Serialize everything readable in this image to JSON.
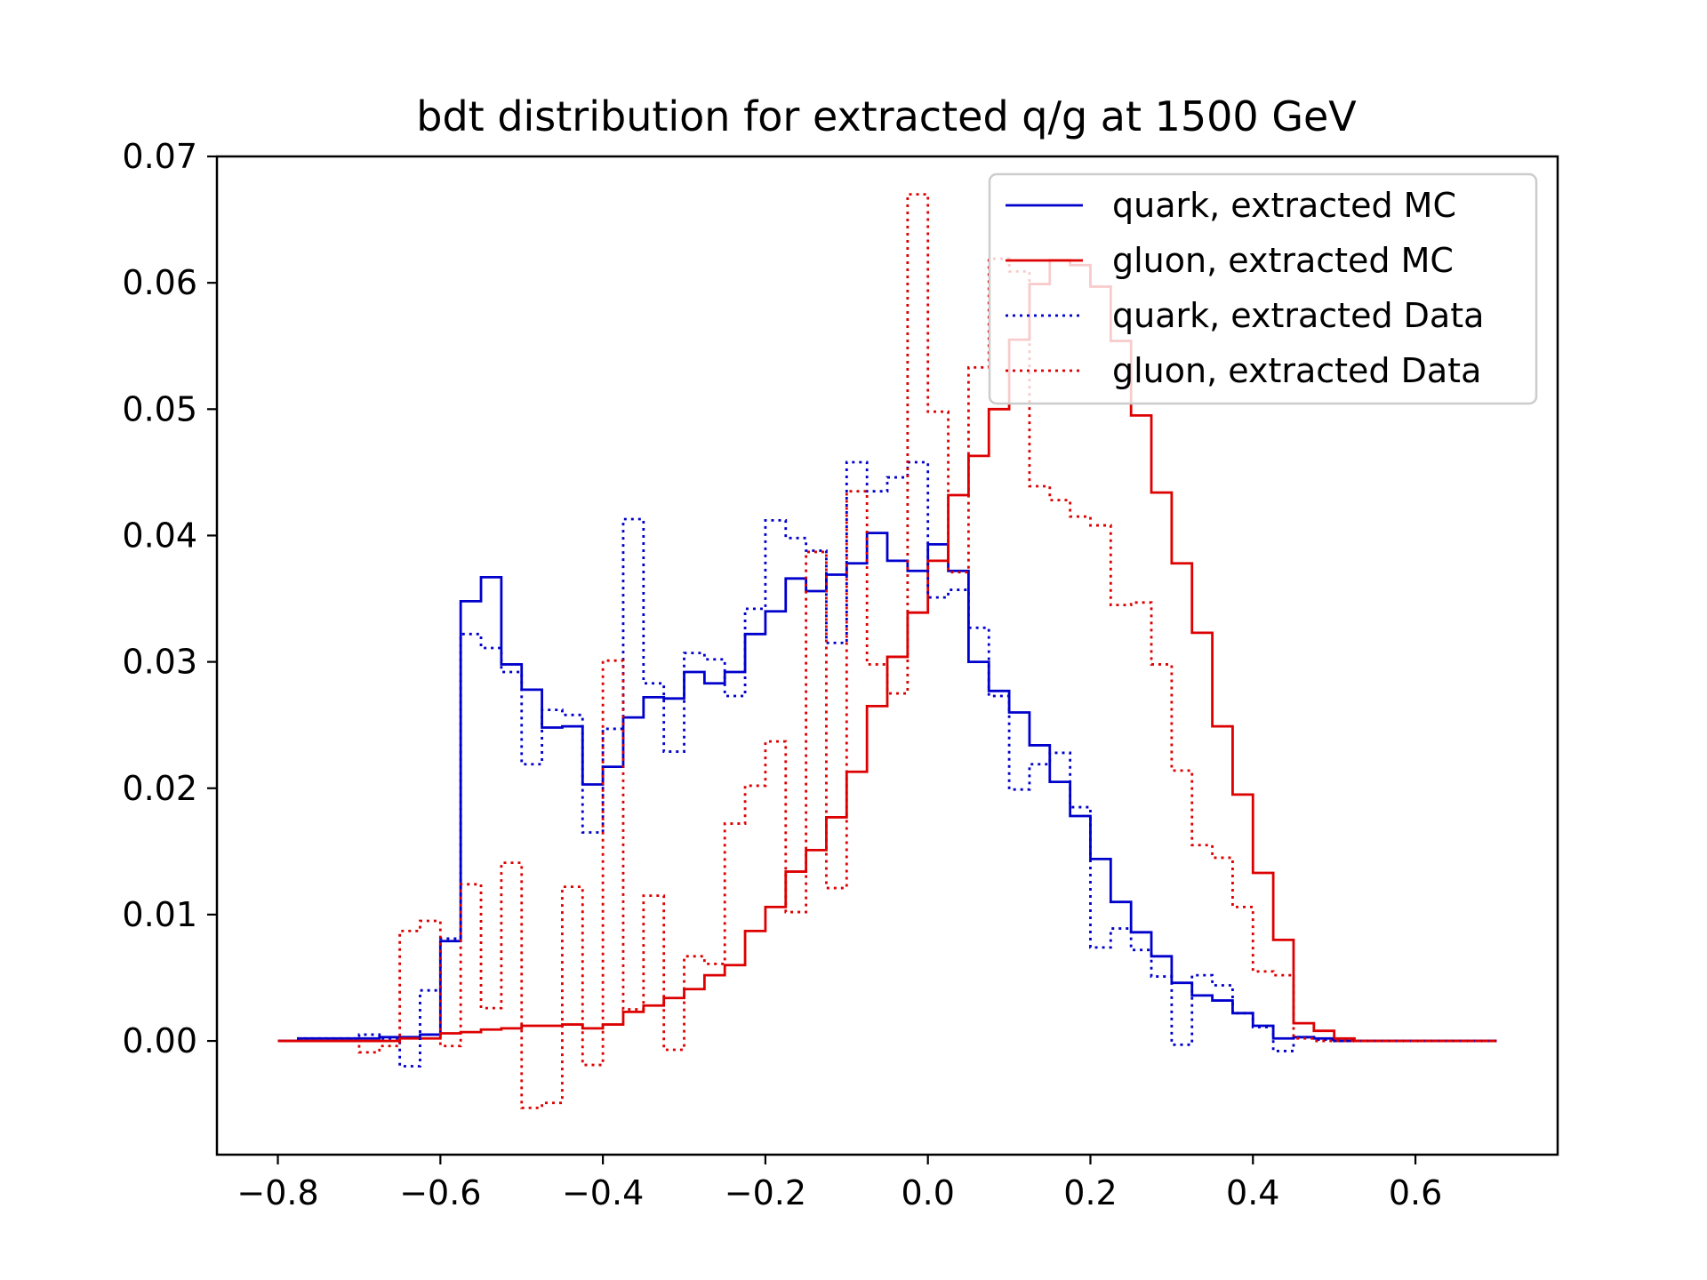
{
  "chart_data": {
    "type": "line",
    "title": "bdt distribution for extracted q/g at 1500 GeV",
    "xlabel": "",
    "ylabel": "",
    "xlim": [
      -0.875,
      0.775
    ],
    "ylim": [
      -0.009,
      0.07
    ],
    "x_ticks": [
      "−0.8",
      "−0.6",
      "−0.4",
      "−0.2",
      "0.0",
      "0.2",
      "0.4",
      "0.6"
    ],
    "x_tick_values": [
      -0.8,
      -0.6,
      -0.4,
      -0.2,
      0.0,
      0.2,
      0.4,
      0.6
    ],
    "y_ticks": [
      "0.00",
      "0.01",
      "0.02",
      "0.03",
      "0.04",
      "0.05",
      "0.06",
      "0.07"
    ],
    "y_tick_values": [
      0.0,
      0.01,
      0.02,
      0.03,
      0.04,
      0.05,
      0.06,
      0.07
    ],
    "grid": false,
    "legend_position": "top-right",
    "bin_edges": [
      -0.8,
      -0.775,
      -0.75,
      -0.725,
      -0.7,
      -0.675,
      -0.65,
      -0.625,
      -0.6,
      -0.575,
      -0.55,
      -0.525,
      -0.5,
      -0.475,
      -0.45,
      -0.425,
      -0.4,
      -0.375,
      -0.35,
      -0.325,
      -0.3,
      -0.275,
      -0.25,
      -0.225,
      -0.2,
      -0.175,
      -0.15,
      -0.125,
      -0.1,
      -0.075,
      -0.05,
      -0.025,
      0.0,
      0.025,
      0.05,
      0.075,
      0.1,
      0.125,
      0.15,
      0.175,
      0.2,
      0.225,
      0.25,
      0.275,
      0.3,
      0.325,
      0.35,
      0.375,
      0.4,
      0.425,
      0.45,
      0.475,
      0.5,
      0.525,
      0.55,
      0.575,
      0.6,
      0.625,
      0.65,
      0.675,
      0.7
    ],
    "series": [
      {
        "name": "quark, extracted MC",
        "color": "#0000cc",
        "style": "solid",
        "values": [
          0.0,
          0.0002,
          0.0002,
          0.0002,
          0.0002,
          0.0003,
          0.0003,
          0.0005,
          0.0079,
          0.0348,
          0.0367,
          0.0298,
          0.0278,
          0.0248,
          0.0249,
          0.0203,
          0.0217,
          0.0256,
          0.0272,
          0.0271,
          0.0292,
          0.0283,
          0.0292,
          0.0322,
          0.034,
          0.0366,
          0.0356,
          0.0369,
          0.0378,
          0.0402,
          0.038,
          0.0372,
          0.0393,
          0.0372,
          0.03,
          0.0277,
          0.026,
          0.0234,
          0.0205,
          0.0178,
          0.0144,
          0.011,
          0.0086,
          0.0067,
          0.0046,
          0.0036,
          0.0032,
          0.0022,
          0.0012,
          0.0002,
          0.0003,
          0.0002,
          0.0,
          0.0,
          0.0,
          0.0,
          0.0,
          0.0,
          0.0,
          0.0
        ]
      },
      {
        "name": "gluon, extracted MC",
        "color": "#dd0000",
        "style": "solid",
        "values": [
          0.0,
          0.0,
          0.0,
          0.0,
          0.0,
          0.0,
          0.0002,
          0.0002,
          0.0006,
          0.0007,
          0.0009,
          0.001,
          0.0012,
          0.0012,
          0.0013,
          0.001,
          0.0013,
          0.0023,
          0.0028,
          0.0034,
          0.0041,
          0.0052,
          0.006,
          0.0087,
          0.0106,
          0.0134,
          0.0151,
          0.0177,
          0.0213,
          0.0265,
          0.0304,
          0.0339,
          0.038,
          0.0432,
          0.0463,
          0.05,
          0.0555,
          0.0599,
          0.0618,
          0.0614,
          0.0597,
          0.0554,
          0.0495,
          0.0434,
          0.0378,
          0.0323,
          0.0249,
          0.0195,
          0.0133,
          0.008,
          0.0014,
          0.0008,
          0.0002,
          0.0,
          0.0,
          0.0,
          0.0,
          0.0,
          0.0,
          0.0
        ]
      },
      {
        "name": "quark, extracted Data",
        "color": "#0000cc",
        "style": "dotted",
        "values": [
          0.0,
          0.0002,
          0.0002,
          0.0002,
          0.0005,
          0.0002,
          -0.002,
          0.004,
          0.0081,
          0.0322,
          0.0311,
          0.0292,
          0.0219,
          0.0262,
          0.0258,
          0.0165,
          0.0247,
          0.0413,
          0.0283,
          0.0229,
          0.0307,
          0.0302,
          0.0273,
          0.0342,
          0.0412,
          0.0398,
          0.0388,
          0.0315,
          0.0458,
          0.0435,
          0.0446,
          0.0458,
          0.0351,
          0.0357,
          0.0327,
          0.0273,
          0.0199,
          0.0219,
          0.0228,
          0.0185,
          0.0074,
          0.0089,
          0.0072,
          0.0051,
          -0.0003,
          0.0052,
          0.0044,
          0.0022,
          0.0011,
          -0.0008,
          0.0003,
          0.0001,
          0.0,
          0.0,
          0.0,
          0.0,
          0.0,
          0.0,
          0.0,
          0.0
        ]
      },
      {
        "name": "gluon, extracted Data",
        "color": "#dd0000",
        "style": "dotted",
        "values": [
          0.0,
          0.0,
          0.0,
          0.0,
          -0.0009,
          -0.0004,
          0.0087,
          0.0095,
          -0.0004,
          0.0124,
          0.0026,
          0.0141,
          -0.0053,
          -0.0049,
          0.0122,
          -0.0019,
          0.0301,
          0.0025,
          0.0115,
          -0.0007,
          0.0067,
          0.0061,
          0.0172,
          0.0202,
          0.0237,
          0.0102,
          0.0387,
          0.0121,
          0.0435,
          0.0298,
          0.0275,
          0.067,
          0.0498,
          0.0371,
          0.0533,
          0.0619,
          0.0609,
          0.0439,
          0.0428,
          0.0415,
          0.0408,
          0.0345,
          0.0347,
          0.0298,
          0.0214,
          0.0155,
          0.0145,
          0.0106,
          0.0055,
          0.0052,
          0.0002,
          0.0,
          0.0,
          0.0,
          0.0,
          0.0,
          0.0,
          0.0,
          0.0,
          0.0
        ]
      }
    ]
  }
}
